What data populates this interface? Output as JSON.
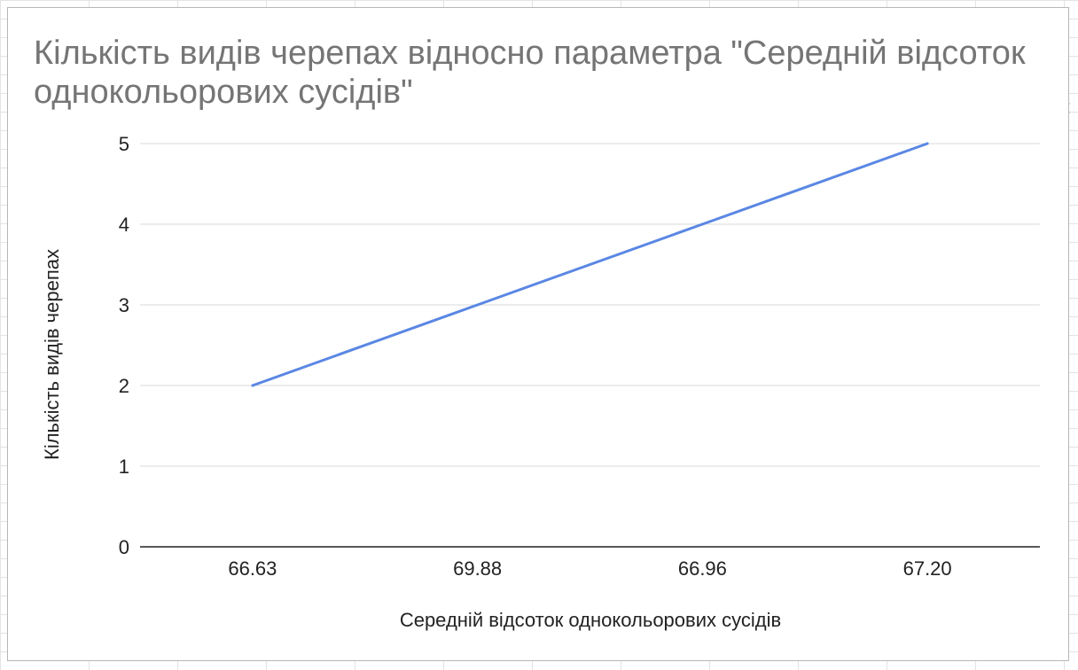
{
  "chart_data": {
    "type": "line",
    "title": "Кількість видів черепах відносно параметра \"Середній відсоток однокольорових сусідів\"",
    "xlabel": "Середній відсоток однокольорових сусідів",
    "ylabel": "Кількість видів черепах",
    "categories": [
      "66.63",
      "69.88",
      "66.96",
      "67.20"
    ],
    "series": [
      {
        "values": [
          2,
          3,
          4,
          5
        ]
      }
    ],
    "ylim": [
      0,
      5
    ],
    "yticks": [
      0,
      1,
      2,
      3,
      4,
      5
    ],
    "grid": true,
    "legend": "none",
    "colors": {
      "line": "#5a87e4",
      "grid": "#d9d9d9",
      "axis": "#222222",
      "title": "#757575"
    }
  }
}
